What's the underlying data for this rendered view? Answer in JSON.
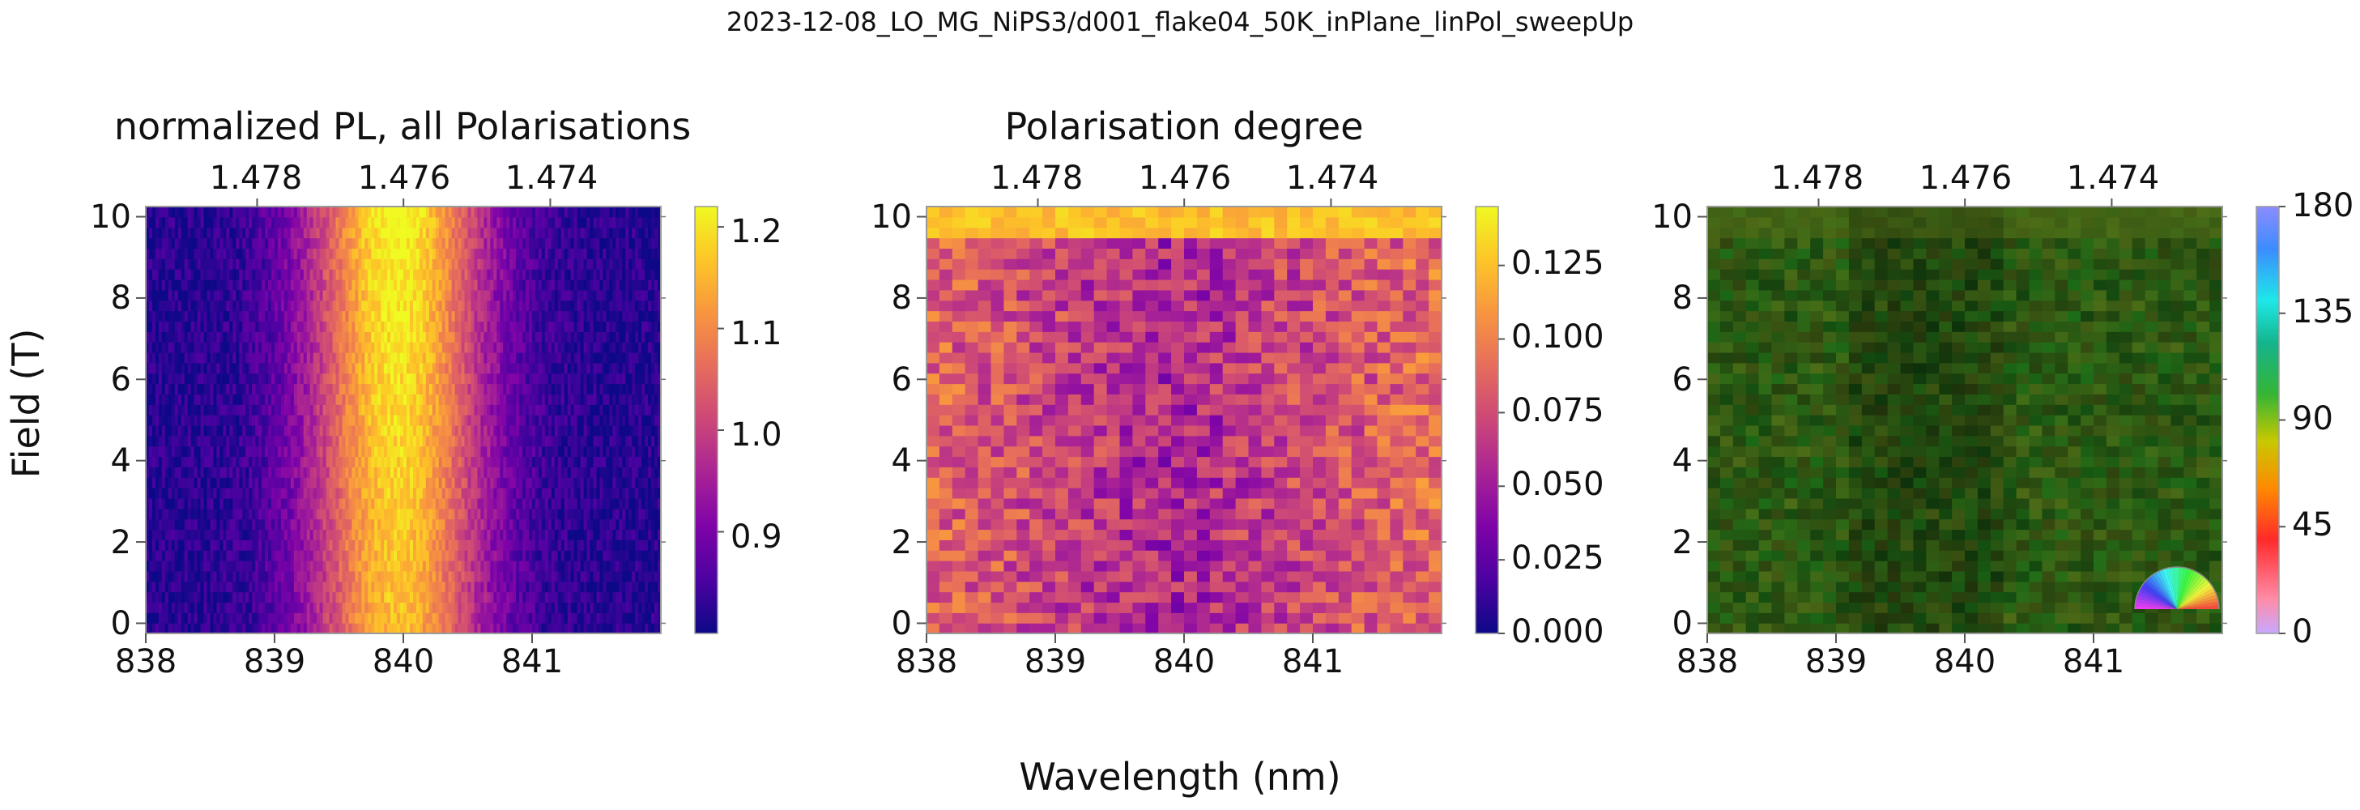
{
  "figure": {
    "suptitle": "2023-12-08_LO_MG_NiPS3/d001_flake04_50K_inPlane_linPol_sweepUp",
    "ylabel": "Field (T)",
    "xlabel": "Wavelength (nm)"
  },
  "chart_data": [
    {
      "type": "heatmap",
      "title": "normalized PL, all Polarisations",
      "x_range_nm": [
        838.0,
        842.0
      ],
      "y_range_T": [
        -0.25,
        10.25
      ],
      "x_ticks": [
        838,
        839,
        840,
        841
      ],
      "top_axis_ticks_eV": [
        "1.478",
        "1.476",
        "1.474"
      ],
      "y_ticks": [
        0,
        2,
        4,
        6,
        8,
        10
      ],
      "field_rows": 41,
      "wavelength_columns": 160,
      "peak_center_nm": 839.95,
      "peak_value_low_field": 1.16,
      "peak_value_high_field": 1.22,
      "background_value": 0.82,
      "colormap": "plasma",
      "colorbar": {
        "range": [
          0.8,
          1.22
        ],
        "ticks": [
          "0.9",
          "1.0",
          "1.1",
          "1.2"
        ]
      }
    },
    {
      "type": "heatmap",
      "title": "Polarisation degree",
      "x_range_nm": [
        838.0,
        842.0
      ],
      "y_range_T": [
        -0.25,
        10.25
      ],
      "x_ticks": [
        838,
        839,
        840,
        841
      ],
      "top_axis_ticks_eV": [
        "1.478",
        "1.476",
        "1.474"
      ],
      "y_ticks": [
        0,
        2,
        4,
        6,
        8,
        10
      ],
      "field_rows": 41,
      "wavelength_columns": 40,
      "typical_value_center": 0.055,
      "typical_value_edges": 0.09,
      "value_at_10T": 0.125,
      "colormap": "plasma",
      "colorbar": {
        "range": [
          0.0,
          0.145
        ],
        "ticks": [
          "0.000",
          "0.025",
          "0.050",
          "0.075",
          "0.100",
          "0.125"
        ]
      }
    },
    {
      "type": "heatmap",
      "title": "",
      "x_range_nm": [
        838.0,
        842.0
      ],
      "y_range_T": [
        -0.25,
        10.25
      ],
      "x_ticks": [
        838,
        839,
        840,
        841
      ],
      "top_axis_ticks_eV": [
        "1.478",
        "1.476",
        "1.474"
      ],
      "y_ticks": [
        0,
        2,
        4,
        6,
        8,
        10
      ],
      "field_rows": 41,
      "wavelength_columns": 40,
      "typical_angle_deg": 100,
      "angle_at_10T_deg": 85,
      "colormap": "hsv (polarisation angle), brightness = polarisation degree",
      "colorbar": {
        "range": [
          0,
          180
        ],
        "ticks": [
          "0",
          "45",
          "90",
          "135",
          "180"
        ]
      },
      "inset": "semicircular angle color wheel (lower right)"
    }
  ]
}
